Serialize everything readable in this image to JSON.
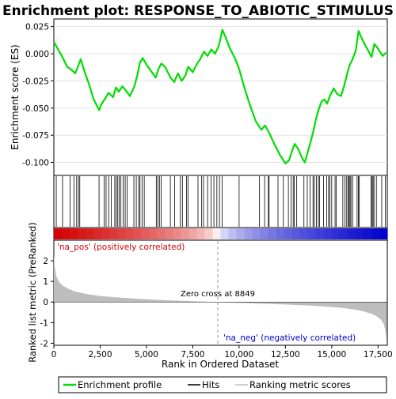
{
  "chart_data": {
    "type": "line",
    "title": "Enrichment plot: RESPONSE_TO_ABIOTIC_STIMULUS",
    "top_panel": {
      "ylabel": "Enrichment score (ES)",
      "ylim": [
        -0.112,
        0.032
      ],
      "yticks": [
        0.025,
        0.0,
        -0.025,
        -0.05,
        -0.075,
        -0.1
      ],
      "ytick_labels": [
        "0.025",
        "0.000",
        "-0.025",
        "-0.050",
        "-0.075",
        "-0.100"
      ],
      "series": [
        {
          "name": "Enrichment profile",
          "color": "#00dd00",
          "x": [
            0,
            260,
            460,
            720,
            900,
            1150,
            1300,
            1450,
            1650,
            1900,
            2150,
            2450,
            2550,
            2780,
            2950,
            3200,
            3350,
            3500,
            3700,
            3900,
            4100,
            4350,
            4500,
            4650,
            4800,
            5000,
            5250,
            5500,
            5650,
            5800,
            6000,
            6300,
            6500,
            6700,
            6900,
            7100,
            7250,
            7500,
            7700,
            7900,
            8100,
            8300,
            8500,
            8700,
            8900,
            9100,
            9300,
            9500,
            9800,
            10000,
            10300,
            10600,
            10900,
            11200,
            11400,
            11600,
            11900,
            12200,
            12500,
            12700,
            12850,
            13000,
            13200,
            13400,
            13550,
            13700,
            13850,
            14000,
            14150,
            14300,
            14450,
            14600,
            14750,
            14900,
            15100,
            15300,
            15500,
            15650,
            15800,
            15950,
            16100,
            16300,
            16450,
            16600,
            16800,
            17000,
            17150,
            17300,
            17450,
            17600,
            17750,
            17950
          ],
          "y": [
            0.011,
            0.003,
            -0.003,
            -0.012,
            -0.014,
            -0.018,
            -0.012,
            -0.005,
            -0.016,
            -0.028,
            -0.042,
            -0.052,
            -0.047,
            -0.041,
            -0.036,
            -0.04,
            -0.031,
            -0.035,
            -0.03,
            -0.034,
            -0.039,
            -0.03,
            -0.02,
            -0.008,
            -0.004,
            -0.01,
            -0.016,
            -0.022,
            -0.014,
            -0.009,
            -0.012,
            -0.022,
            -0.026,
            -0.018,
            -0.025,
            -0.02,
            -0.012,
            -0.017,
            -0.01,
            -0.005,
            0.002,
            -0.002,
            0.004,
            0.0,
            0.007,
            0.022,
            0.014,
            0.005,
            -0.005,
            -0.014,
            -0.032,
            -0.048,
            -0.062,
            -0.07,
            -0.066,
            -0.072,
            -0.083,
            -0.093,
            -0.101,
            -0.098,
            -0.09,
            -0.083,
            -0.088,
            -0.096,
            -0.1,
            -0.091,
            -0.082,
            -0.072,
            -0.06,
            -0.051,
            -0.044,
            -0.042,
            -0.046,
            -0.039,
            -0.032,
            -0.037,
            -0.039,
            -0.031,
            -0.021,
            -0.011,
            -0.006,
            0.003,
            0.021,
            0.015,
            0.008,
            0.002,
            -0.003,
            0.009,
            0.006,
            0.002,
            -0.002,
            0.001
          ]
        }
      ]
    },
    "hits_panel": {
      "legend_label": "Hits",
      "hit_positions": [
        130,
        470,
        880,
        1080,
        1230,
        1330,
        1400,
        2440,
        2720,
        2820,
        2960,
        3100,
        3290,
        3370,
        3450,
        3530,
        3620,
        3750,
        3850,
        3960,
        4320,
        4450,
        4580,
        4650,
        4760,
        4880,
        5530,
        5610,
        5700,
        5790,
        6290,
        6520,
        6830,
        6940,
        7160,
        7240,
        7780,
        7980,
        8080,
        8300,
        8490,
        8640,
        8800,
        8940,
        9080,
        10000,
        11100,
        11380,
        11580,
        11620,
        12100,
        12390,
        12660,
        12810,
        12920,
        12980,
        13110,
        13500,
        13680,
        13830,
        13990,
        14060,
        14170,
        14280,
        14350,
        14560,
        14730,
        14830,
        14900,
        15000,
        15180,
        15240,
        15600,
        15720,
        15810,
        15890,
        15940,
        15990,
        16040,
        16130,
        16370,
        16440,
        16490,
        17120,
        17180,
        17230,
        17280,
        17410,
        17700,
        17900
      ]
    },
    "ranked_panel": {
      "ylabel": "Ranked list metric (PreRanked)",
      "xlabel": "Rank in Ordered Dataset",
      "ylim": [
        -2.1,
        3.0
      ],
      "yticks": [
        2,
        1,
        0,
        -1,
        -2
      ],
      "ytick_labels": [
        "2",
        "1",
        "0",
        "-1",
        "-2"
      ],
      "xlim": [
        0,
        18000
      ],
      "xticks": [
        0,
        2500,
        5000,
        7500,
        10000,
        12500,
        15000,
        17500
      ],
      "xtick_labels": [
        "0",
        "2,500",
        "5,000",
        "7,500",
        "10,000",
        "12,500",
        "15,000",
        "17,500"
      ],
      "series": [
        {
          "name": "Ranking metric scores",
          "color": "#bdbdbd",
          "x": [
            0,
            50,
            150,
            300,
            500,
            800,
            1200,
            1800,
            2500,
            3500,
            4500,
            5500,
            6500,
            7500,
            8300,
            8849,
            9500,
            10500,
            11500,
            12500,
            13500,
            14500,
            15500,
            16200,
            16700,
            17100,
            17400,
            17650,
            17800,
            17880,
            17940,
            17970
          ],
          "y": [
            2.3,
            1.7,
            1.2,
            0.95,
            0.78,
            0.63,
            0.5,
            0.38,
            0.29,
            0.22,
            0.16,
            0.11,
            0.07,
            0.04,
            0.01,
            0.0,
            -0.03,
            -0.06,
            -0.09,
            -0.12,
            -0.16,
            -0.21,
            -0.28,
            -0.36,
            -0.45,
            -0.56,
            -0.68,
            -0.85,
            -1.05,
            -1.3,
            -1.6,
            -1.9
          ]
        }
      ],
      "zero_cross_rank": 8849,
      "zero_cross_label": "Zero cross at 8849",
      "pos_label": "'na_pos' (positively correlated)",
      "neg_label": "'na_neg' (negatively correlated)",
      "pos_color": "#d40000",
      "neg_color": "#0000cc"
    },
    "legend": {
      "placement": "bottom",
      "entries": [
        {
          "label": "Enrichment profile",
          "color": "#00dd00"
        },
        {
          "label": "Hits",
          "color": "#000000"
        },
        {
          "label": "Ranking metric scores",
          "color": "#bdbdbd"
        }
      ]
    }
  }
}
